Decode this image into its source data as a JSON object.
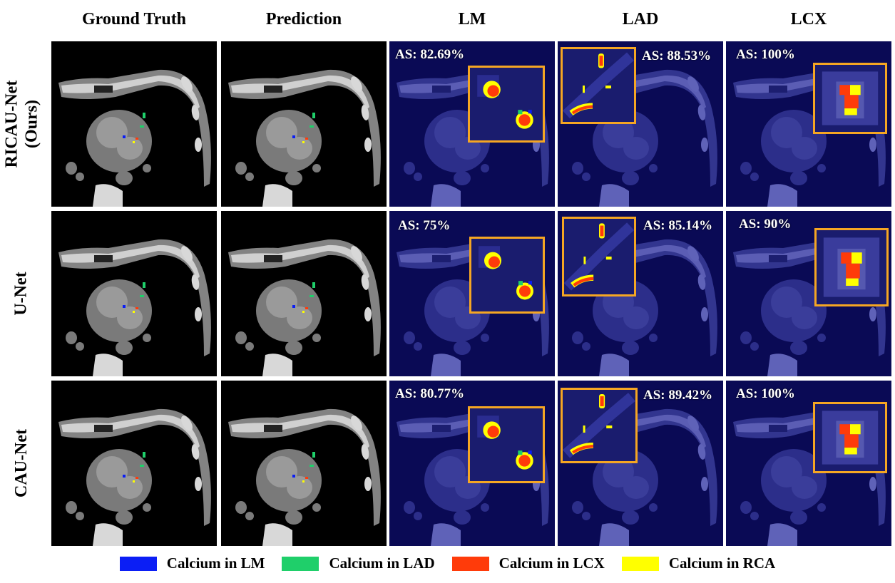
{
  "columns": [
    "Ground Truth",
    "Prediction",
    "LM",
    "LAD",
    "LCX"
  ],
  "rows": [
    {
      "label_line1": "RICAU-Net",
      "label_line2": "(Ours)",
      "scores": [
        "AS: 82.69%",
        "AS: 88.53%",
        "AS: 100%"
      ]
    },
    {
      "label_line1": "U-Net",
      "label_line2": "",
      "scores": [
        "AS: 75%",
        "AS: 85.14%",
        "AS: 90%"
      ]
    },
    {
      "label_line1": "CAU-Net",
      "label_line2": "",
      "scores": [
        "AS: 80.77%",
        "AS: 89.42%",
        "AS: 100%"
      ]
    }
  ],
  "legend": [
    {
      "label": "Calcium in LM",
      "color": "#0b1ef5"
    },
    {
      "label": "Calcium in LAD",
      "color": "#1fcf6a"
    },
    {
      "label": "Calcium in LCX",
      "color": "#ff3b0a"
    },
    {
      "label": "Calcium in RCA",
      "color": "#ffff00"
    }
  ],
  "colors": {
    "heatmap_bg": "#0a0a55",
    "inset_border": "#f5a623",
    "ct_bg": "#000000"
  }
}
